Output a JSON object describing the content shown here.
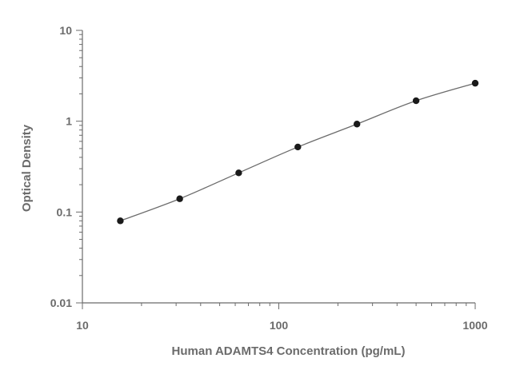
{
  "chart_data": {
    "type": "scatter",
    "xlabel": "Human ADAMTS4 Concentration (pg/mL)",
    "ylabel": "Optical Density",
    "x_scale": "log",
    "y_scale": "log",
    "xlim": [
      10,
      1000
    ],
    "ylim": [
      0.01,
      10
    ],
    "x_ticks": [
      "10",
      "100",
      "1000"
    ],
    "y_ticks": [
      "0.01",
      "0.1",
      "1",
      "10"
    ],
    "grid": false,
    "fit_line": true,
    "series": [
      {
        "x": [
          15.6,
          31.3,
          62.5,
          125,
          250,
          500,
          1000
        ],
        "y": [
          0.08,
          0.14,
          0.27,
          0.52,
          0.93,
          1.68,
          2.62
        ]
      }
    ],
    "colors": {
      "axis": "#6b6b6b",
      "curve": "#6b6b6b",
      "point": "#1a1a1a"
    }
  }
}
